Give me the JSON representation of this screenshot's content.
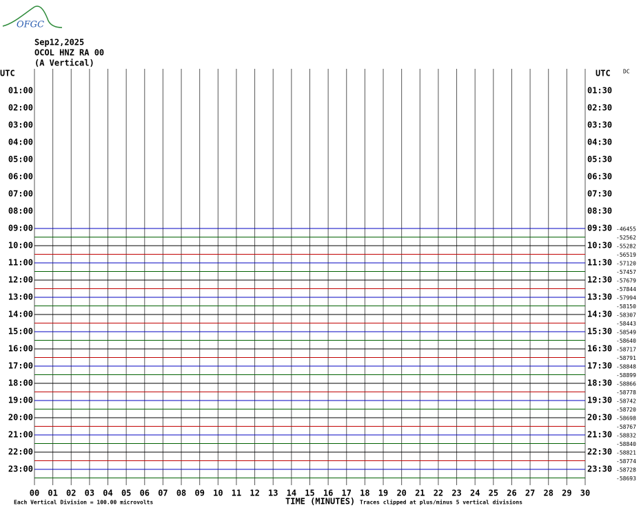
{
  "header": {
    "logo": "OFGC",
    "date": "Sep12,2025",
    "station": "OCOL HNZ RA 00",
    "component": "(A Vertical)",
    "left_utc": "UTC",
    "right_utc": "UTC",
    "dc_label": "DC"
  },
  "left_hours": [
    "01:00",
    "02:00",
    "03:00",
    "04:00",
    "05:00",
    "06:00",
    "07:00",
    "08:00",
    "09:00",
    "10:00",
    "11:00",
    "12:00",
    "13:00",
    "14:00",
    "15:00",
    "16:00",
    "17:00",
    "18:00",
    "19:00",
    "20:00",
    "21:00",
    "22:00",
    "23:00"
  ],
  "right_hours": [
    "01:30",
    "02:30",
    "03:30",
    "04:30",
    "05:30",
    "06:30",
    "07:30",
    "08:30",
    "09:30",
    "10:30",
    "11:30",
    "12:30",
    "13:30",
    "14:30",
    "15:30",
    "16:30",
    "17:30",
    "18:30",
    "19:30",
    "20:30",
    "21:30",
    "22:30",
    "23:30"
  ],
  "dc_values": [
    "-46455",
    "-52562",
    "-55282",
    "-56519",
    "-57120",
    "-57457",
    "-57679",
    "-57844",
    "-57994",
    "-58150",
    "-58307",
    "-58443",
    "-58549",
    "-58640",
    "-58717",
    "-58791",
    "-58848",
    "-58899",
    "-58866",
    "-58778",
    "-58742",
    "-58720",
    "-58698",
    "-58767",
    "-58832",
    "-58840",
    "-58821",
    "-58774",
    "-58728",
    "-58693"
  ],
  "trace_colors": [
    "#0000c0",
    "#006000",
    "#000000",
    "#c00000"
  ],
  "x_labels": [
    "00",
    "01",
    "02",
    "03",
    "04",
    "05",
    "06",
    "07",
    "08",
    "09",
    "10",
    "11",
    "12",
    "13",
    "14",
    "15",
    "16",
    "17",
    "18",
    "19",
    "20",
    "21",
    "22",
    "23",
    "24",
    "25",
    "26",
    "27",
    "28",
    "29",
    "30"
  ],
  "footer": {
    "scale": "Each Vertical Division =  100.00 microvolts",
    "axis": "TIME (MINUTES)",
    "clip": "Traces clipped at plus/minus 5 vertical divisions"
  }
}
